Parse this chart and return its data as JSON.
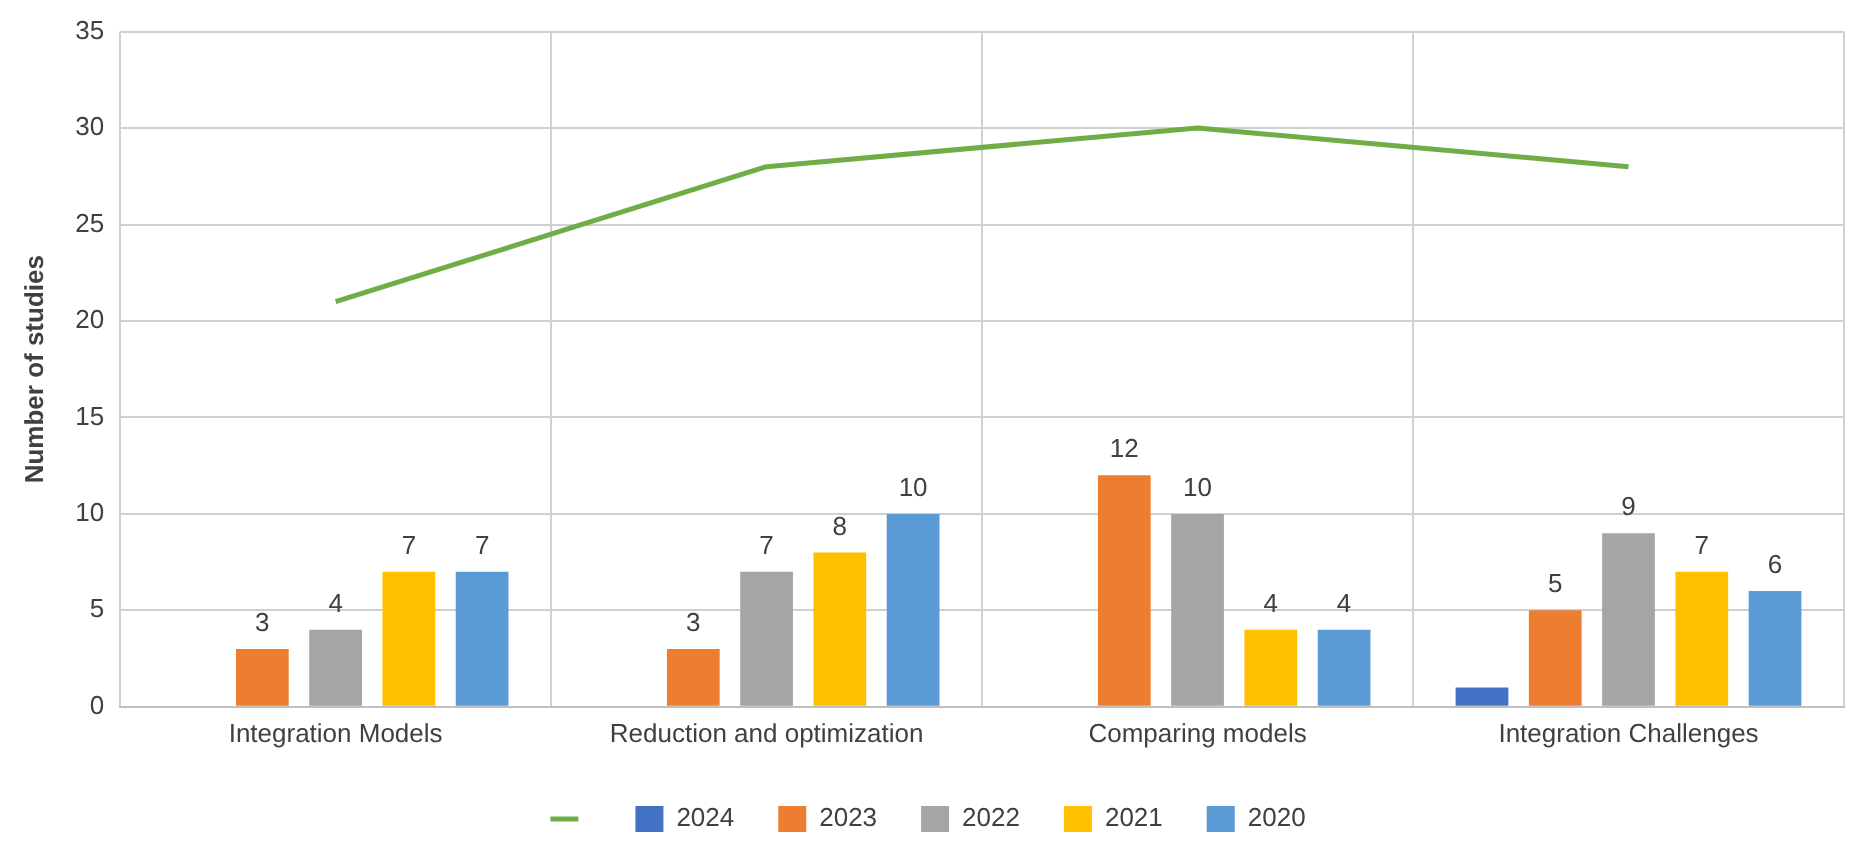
{
  "chart_data": {
    "type": "bar",
    "ylabel": "Number of studies",
    "categories": [
      "Integration Models",
      "Reduction and optimization",
      "Comparing models",
      "Integration Challenges"
    ],
    "series": [
      {
        "name": "2024",
        "color": "#4472c4",
        "values": [
          0,
          0,
          0,
          1
        ],
        "value_labels": [
          null,
          null,
          null,
          null
        ]
      },
      {
        "name": "2023",
        "color": "#ed7d31",
        "values": [
          3,
          3,
          12,
          5
        ],
        "value_labels": [
          "3",
          "3",
          "12",
          "5"
        ]
      },
      {
        "name": "2022",
        "color": "#a5a5a5",
        "values": [
          4,
          7,
          10,
          9
        ],
        "value_labels": [
          "4",
          "7",
          "10",
          "9"
        ]
      },
      {
        "name": "2021",
        "color": "#ffc000",
        "values": [
          7,
          8,
          4,
          7
        ],
        "value_labels": [
          "7",
          "8",
          "4",
          "7"
        ]
      },
      {
        "name": "2020",
        "color": "#5b9bd5",
        "values": [
          7,
          10,
          4,
          6
        ],
        "value_labels": [
          "7",
          "10",
          "4",
          "6"
        ]
      },
      {
        "type": "line",
        "color": "#70ad47",
        "values": [
          21,
          28,
          30,
          28
        ]
      }
    ],
    "ylim": [
      0,
      35
    ],
    "yticks": [
      0,
      5,
      10,
      15,
      20,
      25,
      30,
      35
    ],
    "grid": true,
    "legend": "bottom",
    "marker": "none"
  }
}
